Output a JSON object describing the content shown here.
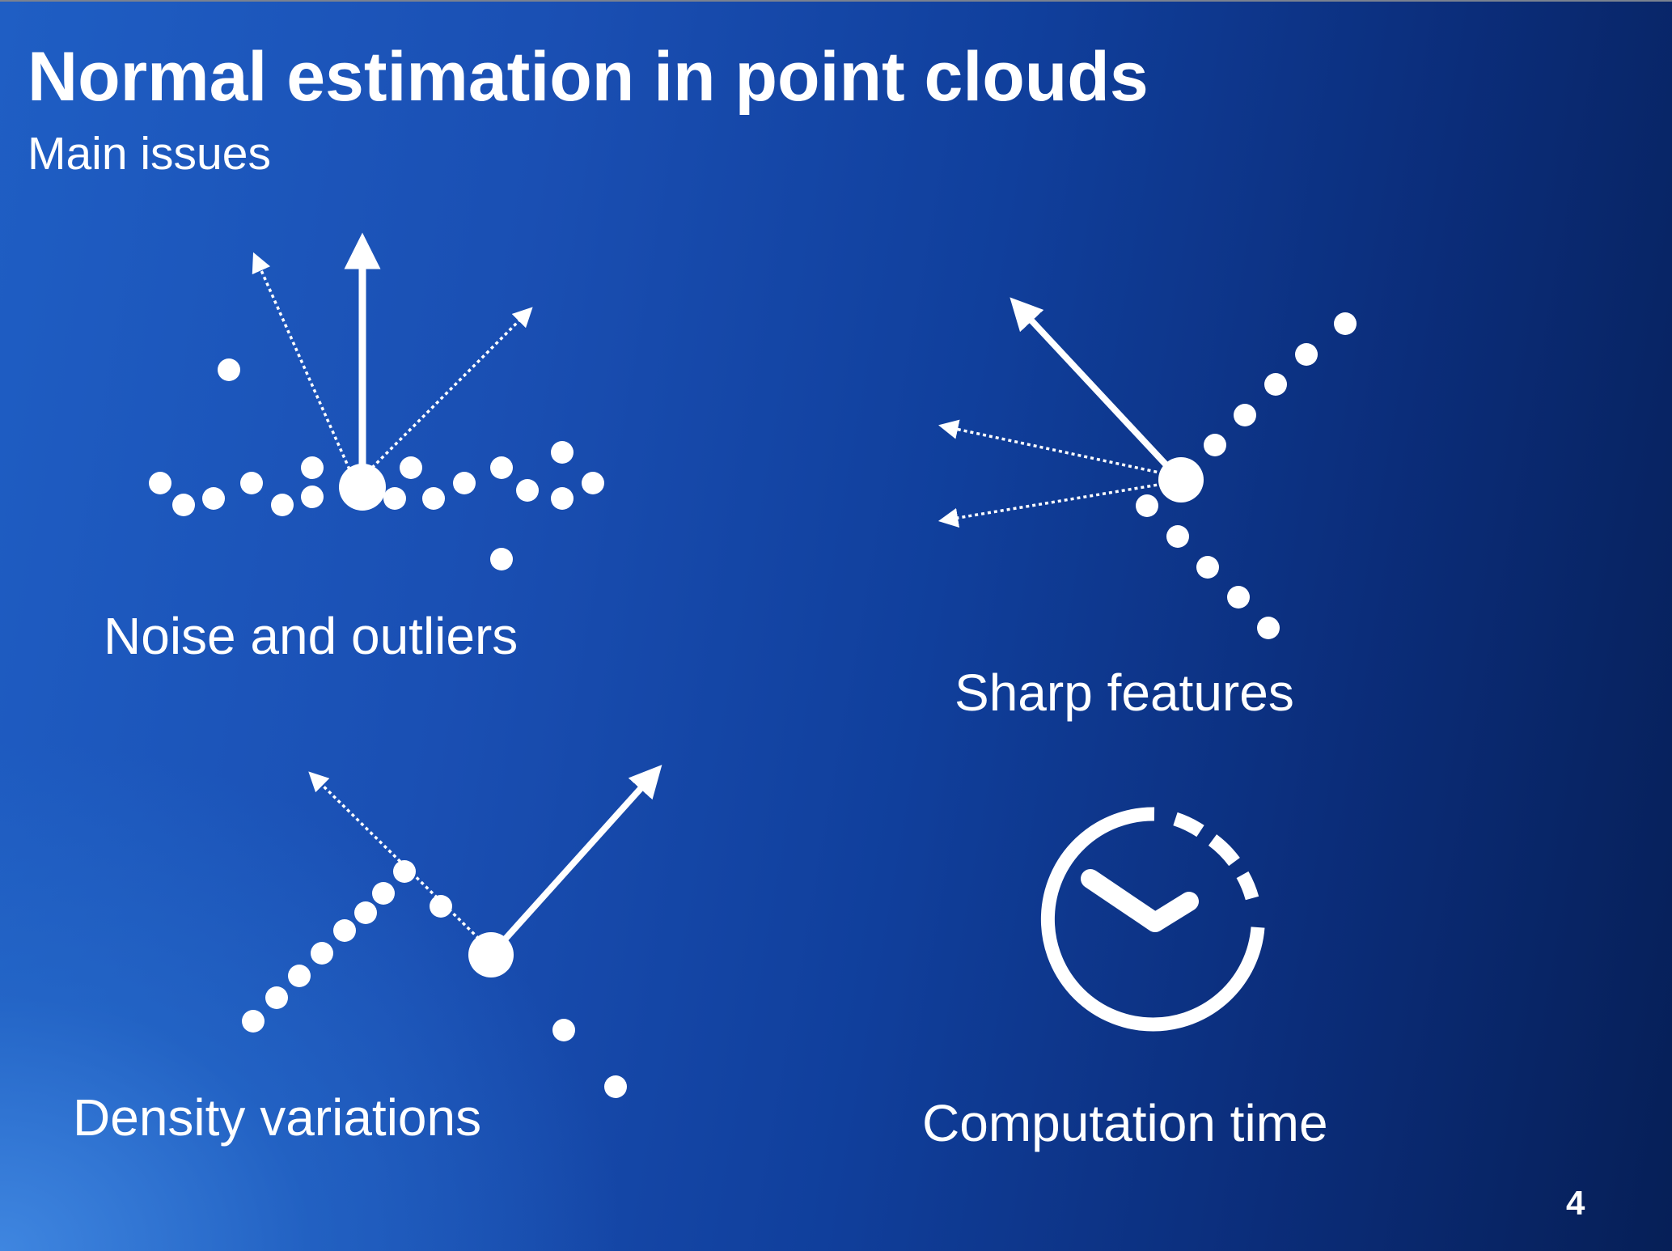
{
  "slide": {
    "title": "Normal estimation in point clouds",
    "subtitle": "Main issues",
    "page_number": "4"
  },
  "panels": {
    "noise": {
      "label": "Noise and outliers",
      "icon": "noisy-point-normals-icon"
    },
    "sharp": {
      "label": "Sharp features",
      "icon": "sharp-corner-normals-icon"
    },
    "density": {
      "label": "Density variations",
      "icon": "density-variation-normals-icon"
    },
    "time": {
      "label": "Computation time",
      "icon": "stopwatch-icon"
    }
  },
  "colors": {
    "background_deep": "#061f57",
    "background_light": "#3f86e0",
    "foreground": "#ffffff"
  }
}
